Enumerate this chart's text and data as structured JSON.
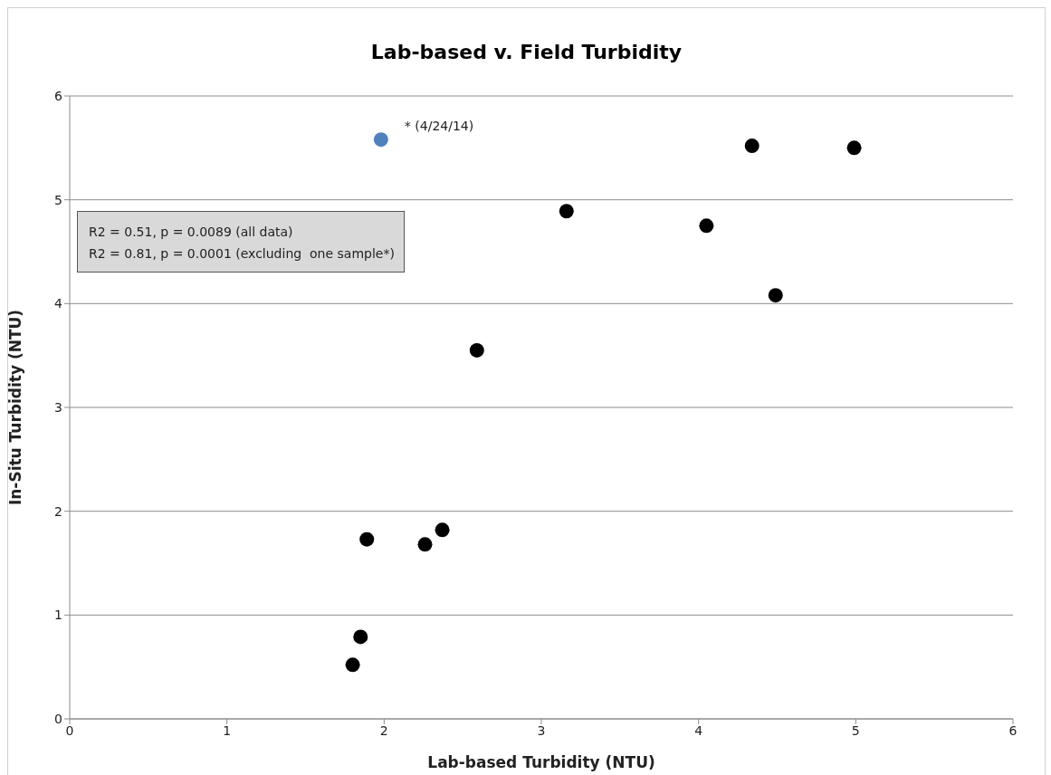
{
  "chart_data": {
    "type": "scatter",
    "title": "Lab-based v. Field Turbidity",
    "xlabel": "Lab-based Turbidity (NTU)",
    "ylabel": "In-Situ Turbidity (NTU)",
    "series": [
      {
        "color": "#000000",
        "x": [
          1.89,
          2.26,
          2.37,
          1.85,
          1.8,
          2.59,
          3.16,
          4.34,
          4.99,
          4.05,
          4.49
        ],
        "values": [
          1.73,
          1.68,
          1.82,
          0.79,
          0.52,
          3.55,
          4.89,
          5.52,
          5.5,
          4.75,
          4.08
        ]
      },
      {
        "color": "#4f81bd",
        "x": [
          1.98
        ],
        "values": [
          5.58
        ]
      }
    ],
    "annotations": [
      "R2 = 0.51, p = 0.0089 (all data)",
      "R2 = 0.81, p = 0.0001 (excluding  one sample*)",
      {
        "text": "* (4/24/14)",
        "x": 1.98,
        "y": 5.58
      }
    ],
    "xlim": [
      0,
      6
    ],
    "xticks": [
      0,
      1,
      2,
      3,
      4,
      5,
      6
    ],
    "ylim": [
      0,
      6
    ],
    "yticks": [
      0,
      1,
      2,
      3,
      4,
      5,
      6
    ],
    "grid": "y",
    "marker": "circle"
  }
}
